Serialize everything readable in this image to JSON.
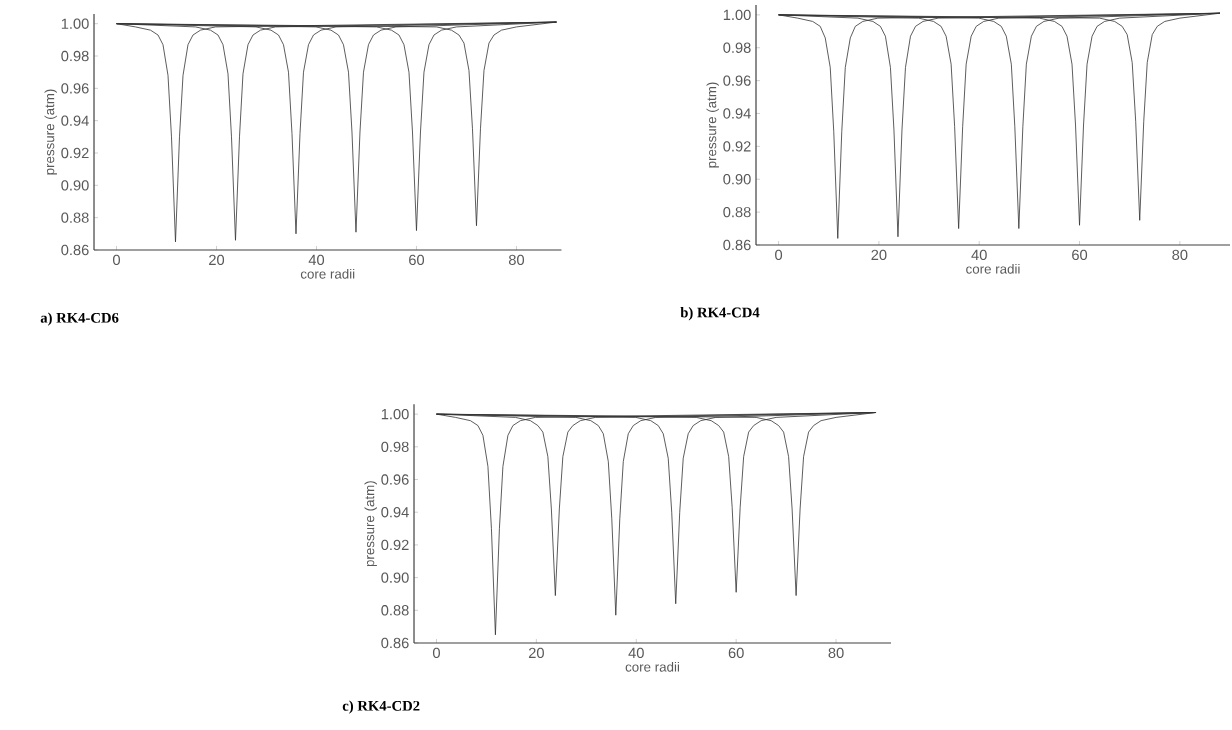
{
  "chart_data": [
    {
      "type": "line",
      "title": "a) RK4-CD6",
      "xlabel": "core radii",
      "ylabel": "pressure (atm)",
      "xlim": [
        -4.5,
        89
      ],
      "ylim": [
        0.86,
        1.006
      ],
      "xticks": [
        0,
        20,
        40,
        60,
        80
      ],
      "yticks": [
        {
          "value": 0.86,
          "label": "0.86"
        },
        {
          "value": 0.88,
          "label": "0.88"
        },
        {
          "value": 0.9,
          "label": "0.90"
        },
        {
          "value": 0.92,
          "label": "0.92"
        },
        {
          "value": 0.94,
          "label": "0.94"
        },
        {
          "value": 0.96,
          "label": "0.96"
        },
        {
          "value": 0.98,
          "label": "0.98"
        },
        {
          "value": 1.0,
          "label": "1.00"
        }
      ],
      "series": [
        {
          "color": "#333333",
          "x": [
            0,
            3.8,
            6.8,
            8.3,
            9.3,
            10.3,
            11,
            11.8,
            12.6,
            13.3,
            14.3,
            15.3,
            16.8,
            19.8,
            88
          ],
          "values": [
            1.0,
            0.998,
            0.996,
            0.993,
            0.987,
            0.968,
            0.93,
            0.865,
            0.93,
            0.968,
            0.987,
            0.993,
            0.996,
            0.998,
            1.001
          ]
        },
        {
          "color": "#333333",
          "x": [
            0,
            15.8,
            18.8,
            20.3,
            21.3,
            22.3,
            23,
            23.8,
            24.6,
            25.3,
            26.3,
            27.3,
            28.8,
            31.8,
            88
          ],
          "values": [
            1.0,
            0.998,
            0.996,
            0.993,
            0.987,
            0.969,
            0.93,
            0.866,
            0.93,
            0.969,
            0.987,
            0.993,
            0.996,
            0.998,
            1.001
          ]
        },
        {
          "color": "#333333",
          "x": [
            0,
            27.9,
            30.9,
            32.4,
            33.4,
            34.4,
            35.1,
            35.9,
            36.7,
            37.4,
            38.4,
            39.4,
            40.9,
            43.9,
            88
          ],
          "values": [
            1.0,
            0.998,
            0.996,
            0.993,
            0.987,
            0.97,
            0.932,
            0.87,
            0.932,
            0.97,
            0.987,
            0.993,
            0.996,
            0.998,
            1.001
          ]
        },
        {
          "color": "#333333",
          "x": [
            0,
            39.9,
            42.9,
            44.4,
            45.4,
            46.4,
            47.1,
            47.9,
            48.7,
            49.4,
            50.4,
            51.4,
            52.9,
            55.9,
            88
          ],
          "values": [
            1.0,
            0.998,
            0.996,
            0.993,
            0.987,
            0.97,
            0.933,
            0.871,
            0.933,
            0.97,
            0.987,
            0.993,
            0.996,
            0.998,
            1.001
          ]
        },
        {
          "color": "#333333",
          "x": [
            0,
            52,
            55,
            56.5,
            57.5,
            58.5,
            59.2,
            60,
            60.8,
            61.5,
            62.5,
            63.5,
            65,
            68,
            88
          ],
          "values": [
            1.0,
            0.998,
            0.996,
            0.993,
            0.987,
            0.97,
            0.933,
            0.872,
            0.933,
            0.97,
            0.987,
            0.993,
            0.996,
            0.998,
            1.001
          ]
        },
        {
          "color": "#333333",
          "x": [
            0,
            64,
            67,
            68.5,
            69.5,
            70.5,
            71.2,
            72,
            72.8,
            73.5,
            74.5,
            75.5,
            77,
            80,
            88
          ],
          "values": [
            1.0,
            0.998,
            0.996,
            0.993,
            0.988,
            0.971,
            0.935,
            0.875,
            0.935,
            0.971,
            0.988,
            0.993,
            0.996,
            0.998,
            1.001
          ]
        }
      ]
    },
    {
      "type": "line",
      "title": "b) RK4-CD4",
      "xlabel": "core radii",
      "ylabel": "pressure (atm)",
      "xlim": [
        -4.5,
        90
      ],
      "ylim": [
        0.86,
        1.006
      ],
      "xticks": [
        0,
        20,
        40,
        60,
        80
      ],
      "yticks": [
        {
          "value": 0.86,
          "label": "0.86"
        },
        {
          "value": 0.88,
          "label": "0.88"
        },
        {
          "value": 0.9,
          "label": "0.90"
        },
        {
          "value": 0.92,
          "label": "0.92"
        },
        {
          "value": 0.94,
          "label": "0.94"
        },
        {
          "value": 0.96,
          "label": "0.96"
        },
        {
          "value": 0.98,
          "label": "0.98"
        },
        {
          "value": 1.0,
          "label": "1.00"
        }
      ],
      "series": [
        {
          "color": "#333333",
          "x": [
            0,
            3.8,
            6.8,
            8.3,
            9.3,
            10.3,
            11,
            11.8,
            12.6,
            13.3,
            14.3,
            15.3,
            16.8,
            19.8,
            88
          ],
          "values": [
            1.0,
            0.998,
            0.996,
            0.993,
            0.986,
            0.968,
            0.929,
            0.864,
            0.929,
            0.968,
            0.986,
            0.993,
            0.996,
            0.998,
            1.001
          ]
        },
        {
          "color": "#333333",
          "x": [
            0,
            15.8,
            18.8,
            20.3,
            21.3,
            22.3,
            23,
            23.8,
            24.6,
            25.3,
            26.3,
            27.3,
            28.8,
            31.8,
            88
          ],
          "values": [
            1.0,
            0.998,
            0.996,
            0.993,
            0.987,
            0.968,
            0.93,
            0.865,
            0.93,
            0.968,
            0.987,
            0.993,
            0.996,
            0.998,
            1.001
          ]
        },
        {
          "color": "#333333",
          "x": [
            0,
            27.9,
            30.9,
            32.4,
            33.4,
            34.4,
            35.1,
            35.9,
            36.7,
            37.4,
            38.4,
            39.4,
            40.9,
            43.9,
            88
          ],
          "values": [
            1.0,
            0.998,
            0.996,
            0.993,
            0.987,
            0.97,
            0.932,
            0.87,
            0.932,
            0.97,
            0.987,
            0.993,
            0.996,
            0.998,
            1.001
          ]
        },
        {
          "color": "#333333",
          "x": [
            0,
            39.9,
            42.9,
            44.4,
            45.4,
            46.4,
            47.1,
            47.9,
            48.7,
            49.4,
            50.4,
            51.4,
            52.9,
            55.9,
            88
          ],
          "values": [
            1.0,
            0.998,
            0.996,
            0.993,
            0.987,
            0.97,
            0.932,
            0.87,
            0.932,
            0.97,
            0.987,
            0.993,
            0.996,
            0.998,
            1.001
          ]
        },
        {
          "color": "#333333",
          "x": [
            0,
            52,
            55,
            56.5,
            57.5,
            58.5,
            59.2,
            60,
            60.8,
            61.5,
            62.5,
            63.5,
            65,
            68,
            88
          ],
          "values": [
            1.0,
            0.998,
            0.996,
            0.993,
            0.987,
            0.97,
            0.933,
            0.872,
            0.933,
            0.97,
            0.987,
            0.993,
            0.996,
            0.998,
            1.001
          ]
        },
        {
          "color": "#333333",
          "x": [
            0,
            64,
            67,
            68.5,
            69.5,
            70.5,
            71.2,
            72,
            72.8,
            73.5,
            74.5,
            75.5,
            77,
            80,
            88
          ],
          "values": [
            1.0,
            0.998,
            0.996,
            0.993,
            0.988,
            0.971,
            0.935,
            0.875,
            0.935,
            0.971,
            0.988,
            0.993,
            0.996,
            0.998,
            1.001
          ]
        }
      ]
    },
    {
      "type": "line",
      "title": "c) RK4-CD2",
      "xlabel": "core radii",
      "ylabel": "pressure (atm)",
      "xlim": [
        -4.5,
        91
      ],
      "ylim": [
        0.86,
        1.006
      ],
      "xticks": [
        0,
        20,
        40,
        60,
        80
      ],
      "yticks": [
        {
          "value": 0.86,
          "label": "0.86"
        },
        {
          "value": 0.88,
          "label": "0.88"
        },
        {
          "value": 0.9,
          "label": "0.90"
        },
        {
          "value": 0.92,
          "label": "0.92"
        },
        {
          "value": 0.94,
          "label": "0.94"
        },
        {
          "value": 0.96,
          "label": "0.96"
        },
        {
          "value": 0.98,
          "label": "0.98"
        },
        {
          "value": 1.0,
          "label": "1.00"
        }
      ],
      "series": [
        {
          "color": "#333333",
          "x": [
            0,
            3.8,
            6.8,
            8.3,
            9.3,
            10.3,
            11,
            11.8,
            12.6,
            13.3,
            14.3,
            15.3,
            16.8,
            19.8,
            88
          ],
          "values": [
            1.0,
            0.998,
            0.996,
            0.993,
            0.987,
            0.968,
            0.93,
            0.865,
            0.93,
            0.968,
            0.987,
            0.993,
            0.996,
            0.998,
            1.001
          ]
        },
        {
          "color": "#333333",
          "x": [
            0,
            15.8,
            18.8,
            20.3,
            21.3,
            22.3,
            23,
            23.8,
            24.6,
            25.3,
            26.3,
            27.3,
            28.8,
            31.8,
            88
          ],
          "values": [
            1.0,
            0.998,
            0.996,
            0.993,
            0.989,
            0.974,
            0.942,
            0.889,
            0.942,
            0.974,
            0.989,
            0.993,
            0.996,
            0.998,
            1.001
          ]
        },
        {
          "color": "#333333",
          "x": [
            0,
            27.9,
            30.9,
            32.4,
            33.4,
            34.4,
            35.1,
            35.9,
            36.7,
            37.4,
            38.4,
            39.4,
            40.9,
            43.9,
            88
          ],
          "values": [
            1.0,
            0.998,
            0.996,
            0.993,
            0.988,
            0.971,
            0.936,
            0.877,
            0.936,
            0.971,
            0.988,
            0.993,
            0.996,
            0.998,
            1.001
          ]
        },
        {
          "color": "#333333",
          "x": [
            0,
            39.9,
            42.9,
            44.4,
            45.4,
            46.4,
            47.1,
            47.9,
            48.7,
            49.4,
            50.4,
            51.4,
            52.9,
            55.9,
            88
          ],
          "values": [
            1.0,
            0.998,
            0.996,
            0.993,
            0.988,
            0.973,
            0.94,
            0.884,
            0.94,
            0.973,
            0.988,
            0.993,
            0.996,
            0.998,
            1.001
          ]
        },
        {
          "color": "#333333",
          "x": [
            0,
            52,
            55,
            56.5,
            57.5,
            58.5,
            59.2,
            60,
            60.8,
            61.5,
            62.5,
            63.5,
            65,
            68,
            88
          ],
          "values": [
            1.0,
            0.998,
            0.996,
            0.993,
            0.989,
            0.974,
            0.943,
            0.891,
            0.943,
            0.974,
            0.989,
            0.993,
            0.996,
            0.998,
            1.001
          ]
        },
        {
          "color": "#333333",
          "x": [
            0,
            64,
            67,
            68.5,
            69.5,
            70.5,
            71.2,
            72,
            72.8,
            73.5,
            74.5,
            75.5,
            77,
            80,
            88
          ],
          "values": [
            1.0,
            0.998,
            0.996,
            0.993,
            0.989,
            0.974,
            0.942,
            0.889,
            0.942,
            0.974,
            0.989,
            0.993,
            0.996,
            0.998,
            1.001
          ]
        }
      ]
    }
  ]
}
